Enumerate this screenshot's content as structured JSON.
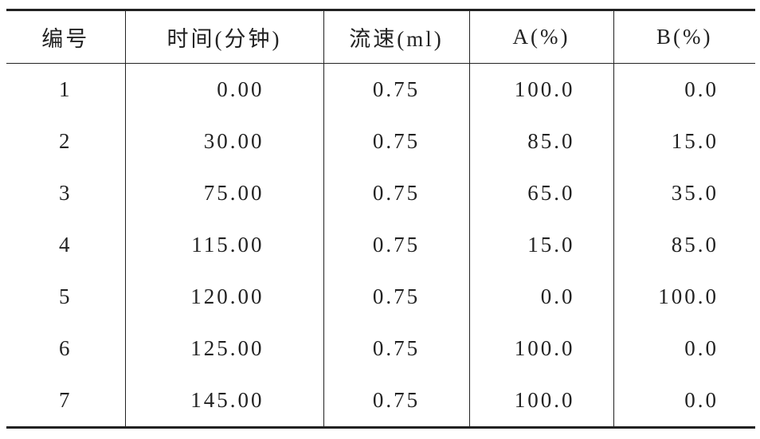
{
  "table": {
    "header": [
      "编号",
      "时间(分钟)",
      "流速(ml)",
      "A(%)",
      "B(%)"
    ],
    "rows": [
      [
        "1",
        "0.00",
        "0.75",
        "100.0",
        "0.0"
      ],
      [
        "2",
        "30.00",
        "0.75",
        "85.0",
        "15.0"
      ],
      [
        "3",
        "75.00",
        "0.75",
        "65.0",
        "35.0"
      ],
      [
        "4",
        "115.00",
        "0.75",
        "15.0",
        "85.0"
      ],
      [
        "5",
        "120.00",
        "0.75",
        "0.0",
        "100.0"
      ],
      [
        "6",
        "125.00",
        "0.75",
        "100.0",
        "0.0"
      ],
      [
        "7",
        "145.00",
        "0.75",
        "100.0",
        "0.0"
      ]
    ]
  }
}
